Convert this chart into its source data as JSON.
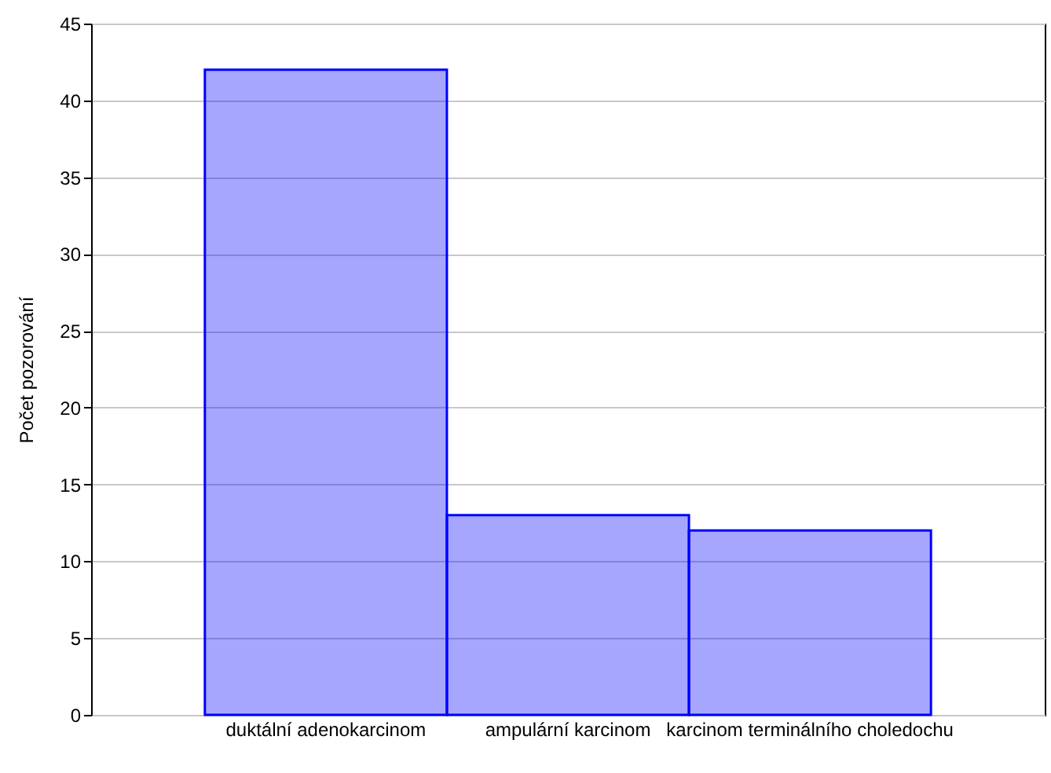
{
  "chart_data": {
    "type": "bar",
    "ylabel": "Počet pozorování",
    "categories": [
      "duktální adenokarcinom",
      "ampulární karcinom",
      "karcinom terminálního choledochu"
    ],
    "values": [
      42,
      13,
      12
    ],
    "color": "#0000ff",
    "ylim": [
      0,
      45
    ],
    "yticks": [
      0,
      5,
      10,
      15,
      20,
      25,
      30,
      35,
      40,
      45
    ],
    "grid": "y"
  }
}
